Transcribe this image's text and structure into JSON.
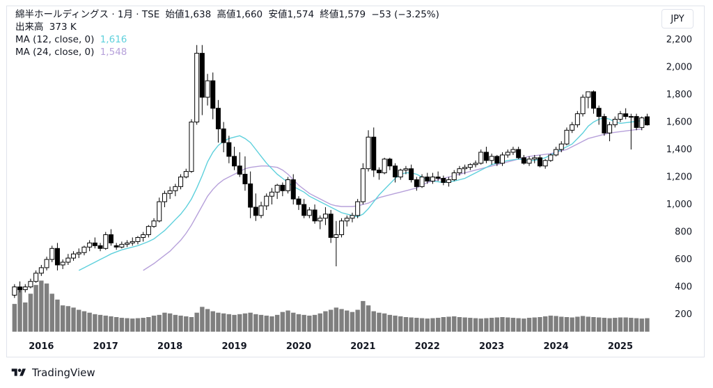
{
  "header": {
    "symbol_line": "綿半ホールディングス · 1月 · TSE",
    "open_label": "始値",
    "open": "1,638",
    "high_label": "高値",
    "high": "1,660",
    "low_label": "安値",
    "low": "1,574",
    "close_label": "終値",
    "close": "1,579",
    "change": "−53 (−3.25%)",
    "volume_label": "出来高",
    "volume": "373 K",
    "ma12_label": "MA (12, close, 0)",
    "ma12_value": "1,616",
    "ma24_label": "MA (24, close, 0)",
    "ma24_value": "1,548"
  },
  "currency_button": "JPY",
  "brand": "TradingView",
  "colors": {
    "up_fill": "#ffffff",
    "down_fill": "#000000",
    "candle_border": "#000000",
    "volume": "#7f7f7f",
    "ma12": "#5dd0dc",
    "ma24": "#b6a0da"
  },
  "chart_data": {
    "type": "candlestick",
    "title": "綿半ホールディングス · 1月 · TSE",
    "y_ticks": [
      "200",
      "400",
      "600",
      "800",
      "1,000",
      "1,200",
      "1,400",
      "1,600",
      "1,800",
      "2,000",
      "2,200"
    ],
    "y_range": [
      130,
      2260
    ],
    "x_ticks": [
      "2016",
      "2017",
      "2018",
      "2019",
      "2020",
      "2021",
      "2022",
      "2023",
      "2024",
      "2025"
    ],
    "first_month": "2015-08",
    "ohlc": [
      [
        340,
        420,
        320,
        400
      ],
      [
        400,
        440,
        360,
        380
      ],
      [
        380,
        420,
        360,
        400
      ],
      [
        400,
        460,
        390,
        440
      ],
      [
        440,
        520,
        430,
        500
      ],
      [
        500,
        560,
        480,
        540
      ],
      [
        540,
        620,
        520,
        600
      ],
      [
        600,
        700,
        580,
        680
      ],
      [
        680,
        720,
        520,
        560
      ],
      [
        560,
        600,
        530,
        580
      ],
      [
        580,
        640,
        560,
        610
      ],
      [
        610,
        660,
        590,
        640
      ],
      [
        640,
        680,
        610,
        650
      ],
      [
        650,
        700,
        630,
        690
      ],
      [
        690,
        740,
        660,
        720
      ],
      [
        720,
        760,
        680,
        700
      ],
      [
        700,
        720,
        660,
        680
      ],
      [
        680,
        800,
        670,
        780
      ],
      [
        780,
        820,
        700,
        720
      ],
      [
        700,
        720,
        670,
        690
      ],
      [
        690,
        730,
        680,
        710
      ],
      [
        710,
        740,
        690,
        720
      ],
      [
        720,
        760,
        700,
        730
      ],
      [
        730,
        770,
        710,
        760
      ],
      [
        760,
        800,
        730,
        780
      ],
      [
        780,
        850,
        760,
        840
      ],
      [
        840,
        900,
        830,
        880
      ],
      [
        880,
        1050,
        870,
        1020
      ],
      [
        1020,
        1100,
        980,
        1080
      ],
      [
        1080,
        1130,
        1040,
        1100
      ],
      [
        1100,
        1150,
        1060,
        1130
      ],
      [
        1130,
        1220,
        1110,
        1200
      ],
      [
        1200,
        1260,
        1190,
        1240
      ],
      [
        1240,
        1620,
        1230,
        1600
      ],
      [
        1600,
        2160,
        1580,
        2100
      ],
      [
        2100,
        2160,
        1650,
        1780
      ],
      [
        1780,
        1950,
        1720,
        1900
      ],
      [
        1900,
        1960,
        1620,
        1700
      ],
      [
        1700,
        1760,
        1450,
        1550
      ],
      [
        1550,
        1600,
        1380,
        1450
      ],
      [
        1450,
        1500,
        1300,
        1350
      ],
      [
        1350,
        1420,
        1250,
        1280
      ],
      [
        1280,
        1380,
        1200,
        1220
      ],
      [
        1220,
        1350,
        1100,
        1150
      ],
      [
        1150,
        1240,
        900,
        980
      ],
      [
        980,
        1080,
        880,
        920
      ],
      [
        920,
        1020,
        900,
        990
      ],
      [
        990,
        1080,
        960,
        1060
      ],
      [
        1060,
        1120,
        1000,
        1090
      ],
      [
        1090,
        1150,
        1040,
        1140
      ],
      [
        1140,
        1160,
        1060,
        1100
      ],
      [
        1100,
        1200,
        1080,
        1180
      ],
      [
        1180,
        1220,
        1000,
        1040
      ],
      [
        1040,
        1060,
        960,
        1000
      ],
      [
        1000,
        1040,
        900,
        920
      ],
      [
        920,
        980,
        900,
        960
      ],
      [
        960,
        1000,
        860,
        880
      ],
      [
        880,
        920,
        820,
        900
      ],
      [
        900,
        980,
        850,
        930
      ],
      [
        930,
        960,
        720,
        760
      ],
      [
        760,
        880,
        550,
        780
      ],
      [
        780,
        900,
        760,
        880
      ],
      [
        880,
        920,
        840,
        900
      ],
      [
        900,
        940,
        870,
        920
      ],
      [
        920,
        1040,
        900,
        1020
      ],
      [
        1020,
        1300,
        1000,
        1260
      ],
      [
        1260,
        1540,
        1240,
        1490
      ],
      [
        1490,
        1560,
        1200,
        1250
      ],
      [
        1250,
        1270,
        1180,
        1230
      ],
      [
        1230,
        1340,
        1220,
        1330
      ],
      [
        1330,
        1340,
        1250,
        1280
      ],
      [
        1280,
        1300,
        1160,
        1200
      ],
      [
        1200,
        1260,
        1180,
        1250
      ],
      [
        1250,
        1280,
        1220,
        1260
      ],
      [
        1260,
        1290,
        1160,
        1180
      ],
      [
        1180,
        1200,
        1100,
        1130
      ],
      [
        1130,
        1220,
        1120,
        1200
      ],
      [
        1200,
        1230,
        1150,
        1170
      ],
      [
        1170,
        1230,
        1150,
        1200
      ],
      [
        1200,
        1240,
        1170,
        1190
      ],
      [
        1190,
        1210,
        1140,
        1160
      ],
      [
        1160,
        1200,
        1130,
        1180
      ],
      [
        1180,
        1250,
        1170,
        1230
      ],
      [
        1230,
        1280,
        1210,
        1260
      ],
      [
        1260,
        1290,
        1220,
        1270
      ],
      [
        1270,
        1300,
        1250,
        1290
      ],
      [
        1290,
        1320,
        1270,
        1300
      ],
      [
        1300,
        1400,
        1290,
        1380
      ],
      [
        1380,
        1420,
        1300,
        1320
      ],
      [
        1320,
        1370,
        1290,
        1350
      ],
      [
        1350,
        1360,
        1280,
        1300
      ],
      [
        1300,
        1380,
        1280,
        1360
      ],
      [
        1360,
        1400,
        1340,
        1380
      ],
      [
        1380,
        1420,
        1360,
        1400
      ],
      [
        1400,
        1420,
        1330,
        1340
      ],
      [
        1340,
        1360,
        1290,
        1300
      ],
      [
        1300,
        1350,
        1280,
        1330
      ],
      [
        1330,
        1360,
        1300,
        1340
      ],
      [
        1340,
        1360,
        1270,
        1280
      ],
      [
        1280,
        1330,
        1260,
        1320
      ],
      [
        1320,
        1370,
        1310,
        1360
      ],
      [
        1360,
        1420,
        1350,
        1400
      ],
      [
        1400,
        1460,
        1380,
        1440
      ],
      [
        1440,
        1560,
        1430,
        1540
      ],
      [
        1540,
        1600,
        1520,
        1580
      ],
      [
        1580,
        1680,
        1560,
        1660
      ],
      [
        1660,
        1800,
        1640,
        1780
      ],
      [
        1780,
        1820,
        1700,
        1820
      ],
      [
        1820,
        1830,
        1660,
        1700
      ],
      [
        1700,
        1720,
        1580,
        1640
      ],
      [
        1640,
        1660,
        1500,
        1520
      ],
      [
        1520,
        1600,
        1460,
        1580
      ],
      [
        1580,
        1640,
        1560,
        1620
      ],
      [
        1620,
        1680,
        1600,
        1660
      ],
      [
        1660,
        1700,
        1620,
        1640
      ],
      [
        1640,
        1660,
        1400,
        1640
      ],
      [
        1640,
        1660,
        1540,
        1560
      ],
      [
        1560,
        1640,
        1540,
        1630
      ],
      [
        1638,
        1660,
        1574,
        1579
      ]
    ],
    "volume": [
      380,
      580,
      400,
      520,
      640,
      700,
      660,
      520,
      440,
      360,
      350,
      330,
      300,
      280,
      260,
      240,
      230,
      220,
      210,
      200,
      190,
      185,
      180,
      185,
      190,
      200,
      220,
      230,
      260,
      250,
      230,
      220,
      210,
      200,
      260,
      340,
      310,
      280,
      260,
      250,
      240,
      230,
      240,
      250,
      260,
      240,
      230,
      220,
      210,
      230,
      270,
      290,
      260,
      240,
      230,
      220,
      230,
      250,
      280,
      300,
      330,
      310,
      290,
      270,
      300,
      420,
      360,
      280,
      260,
      250,
      230,
      220,
      210,
      200,
      195,
      190,
      185,
      180,
      185,
      190,
      200,
      205,
      210,
      200,
      195,
      190,
      185,
      180,
      185,
      190,
      195,
      200,
      195,
      190,
      185,
      180,
      190,
      195,
      200,
      210,
      220,
      215,
      205,
      200,
      195,
      205,
      215,
      205,
      200,
      195,
      190,
      185,
      190,
      195,
      195,
      190,
      185,
      180,
      185
    ],
    "ma12": [
      null,
      null,
      null,
      null,
      null,
      null,
      null,
      null,
      null,
      null,
      null,
      null,
      520,
      540,
      560,
      580,
      600,
      620,
      640,
      655,
      670,
      680,
      690,
      700,
      715,
      730,
      750,
      780,
      810,
      850,
      890,
      930,
      980,
      1040,
      1120,
      1210,
      1310,
      1380,
      1430,
      1460,
      1480,
      1490,
      1500,
      1480,
      1450,
      1400,
      1350,
      1300,
      1260,
      1220,
      1190,
      1160,
      1130,
      1110,
      1090,
      1060,
      1040,
      1020,
      1000,
      980,
      960,
      940,
      930,
      920,
      910,
      930,
      970,
      1020,
      1070,
      1110,
      1150,
      1190,
      1220,
      1230,
      1230,
      1220,
      1200,
      1180,
      1170,
      1165,
      1160,
      1165,
      1170,
      1180,
      1190,
      1210,
      1230,
      1250,
      1270,
      1290,
      1300,
      1310,
      1320,
      1325,
      1330,
      1325,
      1320,
      1320,
      1330,
      1340,
      1360,
      1380,
      1400,
      1420,
      1440,
      1480,
      1520,
      1570,
      1600,
      1620,
      1630,
      1620,
      1600,
      1590,
      1595,
      1600,
      1605,
      1610,
      1616
    ],
    "ma24": [
      null,
      null,
      null,
      null,
      null,
      null,
      null,
      null,
      null,
      null,
      null,
      null,
      null,
      null,
      null,
      null,
      null,
      null,
      null,
      null,
      null,
      null,
      null,
      null,
      520,
      545,
      570,
      600,
      630,
      660,
      700,
      740,
      790,
      850,
      920,
      990,
      1060,
      1110,
      1150,
      1180,
      1200,
      1220,
      1240,
      1260,
      1270,
      1275,
      1280,
      1280,
      1275,
      1270,
      1250,
      1220,
      1180,
      1140,
      1110,
      1080,
      1060,
      1040,
      1020,
      1000,
      990,
      985,
      985,
      985,
      990,
      1000,
      1010,
      1030,
      1050,
      1060,
      1070,
      1080,
      1090,
      1100,
      1110,
      1120,
      1140,
      1160,
      1170,
      1180,
      1190,
      1200,
      1210,
      1220,
      1230,
      1240,
      1250,
      1260,
      1270,
      1280,
      1290,
      1300,
      1310,
      1320,
      1330,
      1340,
      1350,
      1355,
      1360,
      1365,
      1370,
      1380,
      1390,
      1400,
      1420,
      1440,
      1460,
      1480,
      1490,
      1500,
      1510,
      1520,
      1525,
      1530,
      1535,
      1540,
      1545,
      1548
    ]
  }
}
